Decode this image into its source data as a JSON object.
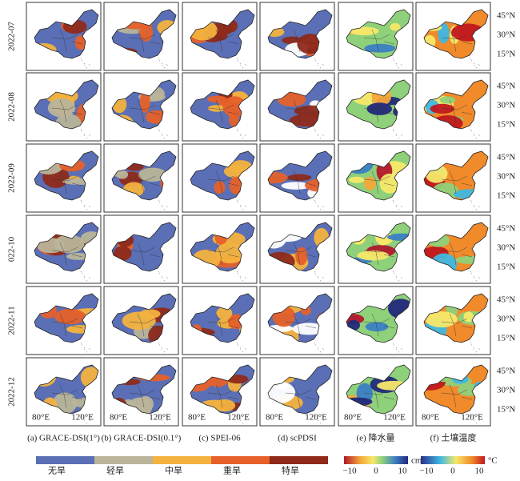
{
  "row_labels": [
    "2022-07",
    "2022-08",
    "2022-09",
    "022-10",
    "2022-11",
    "2022-12"
  ],
  "column_labels": [
    "(a) GRACE-DSI(1°)",
    "(b) GRACE-DSI(0.1°)",
    "(c) SPEI-06",
    "(d) scPDSI",
    "(e) 降水量",
    "(f) 土壤温度"
  ],
  "lon_labels": [
    "80°E",
    "120°E"
  ],
  "lat_labels": [
    "45°N",
    "30°N",
    "15°N"
  ],
  "drought_legend": {
    "classes": [
      "无旱",
      "轻旱",
      "中旱",
      "重旱",
      "特旱"
    ]
  },
  "colorbars": [
    {
      "unit": "cm",
      "ticks": [
        "−10",
        "0",
        "10"
      ]
    },
    {
      "unit": "°C",
      "ticks": [
        "−10",
        "0",
        "10"
      ]
    }
  ]
}
